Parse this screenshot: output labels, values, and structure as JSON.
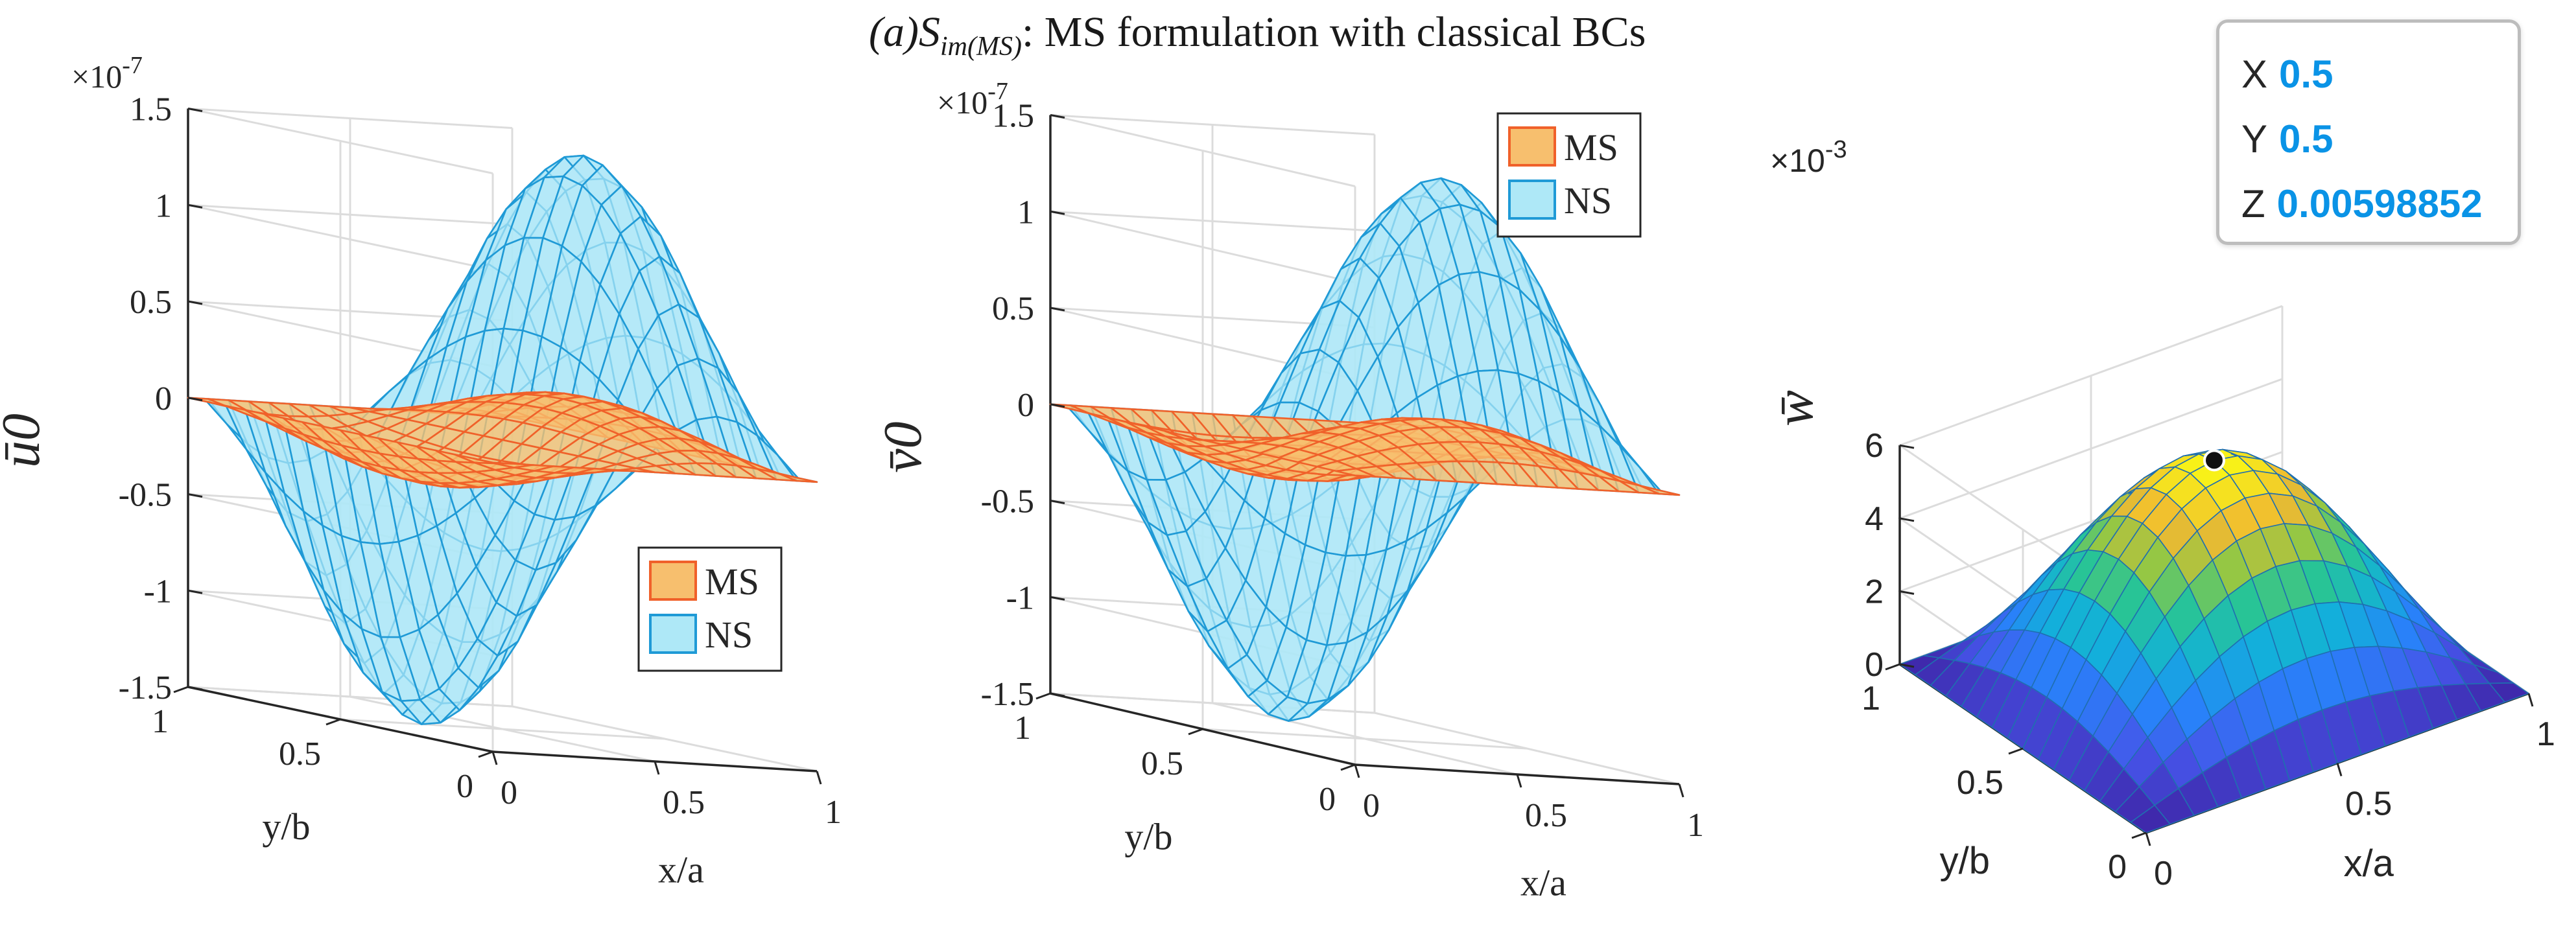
{
  "figure": {
    "title_lead": "(a)S",
    "title_sub": "im(MS)",
    "title_rest": ": MS formulation with classical BCs"
  },
  "colors": {
    "ns_edge": "#1f9ad6",
    "ns_face": "#aee8f7",
    "ms_edge": "#f0612a",
    "ms_face": "#f7bf6e",
    "axis": "#262626",
    "grid": "#dcdcdc",
    "marker": "#111111"
  },
  "datatip": {
    "x_label": "X",
    "x_value": "0.5",
    "y_label": "Y",
    "y_value": "0.5",
    "z_label": "Z",
    "z_value": "0.00598852"
  },
  "chart_data": [
    {
      "type": "surface",
      "name": "u0-plot",
      "zlabel": "ū0",
      "xlabel": "x/a",
      "ylabel": "y/b",
      "exponent": "×10^-7",
      "exponent_text": "×10",
      "exponent_power": "-7",
      "zlim": [
        -1.5,
        1.5
      ],
      "z_ticks": [
        -1.5,
        -1,
        -0.5,
        0,
        0.5,
        1,
        1.5
      ],
      "z_tick_labels": [
        "-1.5",
        "-1",
        "-0.5",
        "0",
        "0.5",
        "1",
        "1.5"
      ],
      "x_ticks": [
        0,
        0.5,
        1
      ],
      "x_tick_labels": [
        "0",
        "0.5",
        "1"
      ],
      "y_ticks": [
        0,
        0.5,
        1
      ],
      "y_tick_labels": [
        "0",
        "0.5",
        "1"
      ],
      "grid": "on",
      "legend_position": "lower-right",
      "legend": [
        "MS",
        "NS"
      ],
      "series": [
        {
          "name": "NS",
          "function": "1.5 * sin(pi*y) * sin(2*pi*x) * (-1)",
          "peak": 1.5,
          "mesh": 16
        },
        {
          "name": "MS",
          "function": "-0.25 * sin(pi*y) * sin(2*pi*x) * (-1)",
          "peak": 0.25,
          "mesh": 16
        }
      ]
    },
    {
      "type": "surface",
      "name": "v0-plot",
      "zlabel": "v̄0",
      "xlabel": "x/a",
      "ylabel": "y/b",
      "exponent": "×10^-7",
      "exponent_text": "×10",
      "exponent_power": "-7",
      "zlim": [
        -1.5,
        1.5
      ],
      "z_ticks": [
        -1.5,
        -1,
        -0.5,
        0,
        0.5,
        1,
        1.5
      ],
      "z_tick_labels": [
        "-1.5",
        "-1",
        "-0.5",
        "0",
        "0.5",
        "1",
        "1.5"
      ],
      "x_ticks": [
        0,
        0.5,
        1
      ],
      "x_tick_labels": [
        "0",
        "0.5",
        "1"
      ],
      "y_ticks": [
        0,
        0.5,
        1
      ],
      "y_tick_labels": [
        "0",
        "0.5",
        "1"
      ],
      "grid": "on",
      "legend_position": "top-right",
      "legend": [
        "MS",
        "NS"
      ],
      "series": [
        {
          "name": "NS",
          "function": "1.5 * sin(pi*x) * sin(2*pi*y)",
          "peak": 1.5,
          "mesh": 16
        },
        {
          "name": "MS",
          "function": "-0.25 * sin(pi*x) * sin(2*pi*y)",
          "peak": 0.25,
          "mesh": 16
        }
      ]
    },
    {
      "type": "surface",
      "name": "w-plot",
      "zlabel": "w̄",
      "xlabel": "x/a",
      "ylabel": "y/b",
      "exponent": "×10^-3",
      "exponent_text": "×10",
      "exponent_power": "-3",
      "zlim": [
        0,
        6
      ],
      "z_ticks": [
        0,
        2,
        4,
        6
      ],
      "z_tick_labels": [
        "0",
        "2",
        "4",
        "6"
      ],
      "x_ticks": [
        0,
        0.5,
        1
      ],
      "x_tick_labels": [
        "0",
        "0.5",
        "1"
      ],
      "y_ticks": [
        0,
        0.5,
        1
      ],
      "y_tick_labels": [
        "0",
        "0.5",
        "1"
      ],
      "grid": "on",
      "colormap": "parula",
      "series": [
        {
          "name": "w",
          "function": "5.98852 * sin(pi*x) * sin(pi*y)",
          "peak": 5.98852,
          "mesh": 16
        }
      ],
      "marked_point": {
        "x": 0.5,
        "y": 0.5,
        "z": 0.00598852
      }
    }
  ]
}
